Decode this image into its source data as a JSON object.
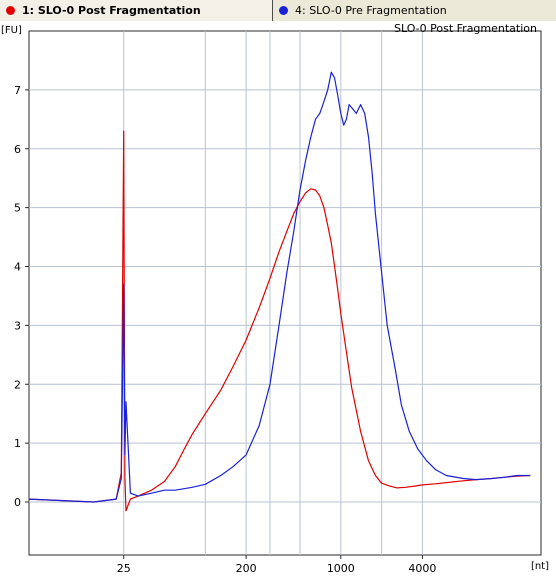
{
  "tabs": [
    {
      "label": "1: SLO-0 Post Fragmentation",
      "color": "#e00000",
      "active": true
    },
    {
      "label": "4: SLO-0 Pre Fragmentation",
      "color": "#1a22d8",
      "active": false
    }
  ],
  "chart_data": {
    "type": "line",
    "title": "SLO-0 Post Fragmentation",
    "ylabel": "[FU]",
    "xlabel": "[nt]",
    "x_scale": "log",
    "xlim": [
      5,
      30000
    ],
    "ylim": [
      -0.9,
      8.0
    ],
    "y_ticks": [
      0,
      1,
      2,
      3,
      4,
      5,
      6,
      7
    ],
    "x_tick_labels": [
      "25",
      "200",
      "1000",
      "4000"
    ],
    "x_ticks": [
      25,
      200,
      1000,
      4000
    ],
    "x_gridlines": [
      25,
      100,
      200,
      300,
      500,
      1000,
      2000,
      4000
    ],
    "grid": true,
    "series": [
      {
        "name": "1: SLO-0 Post Fragmentation",
        "color": "#e00000",
        "x": [
          5,
          15,
          22,
          24,
          25,
          25.5,
          26,
          28,
          32,
          40,
          50,
          60,
          70,
          80,
          100,
          130,
          160,
          200,
          250,
          300,
          350,
          400,
          450,
          500,
          550,
          600,
          650,
          700,
          750,
          800,
          850,
          900,
          950,
          1000,
          1100,
          1200,
          1400,
          1600,
          1800,
          2000,
          2300,
          2600,
          3000,
          3500,
          4000,
          5000,
          6000,
          8000,
          10000,
          13000,
          16000,
          20000,
          25000
        ],
        "y": [
          0.05,
          0.0,
          0.05,
          0.5,
          6.3,
          0.4,
          -0.15,
          0.05,
          0.1,
          0.2,
          0.35,
          0.6,
          0.9,
          1.15,
          1.5,
          1.9,
          2.3,
          2.75,
          3.3,
          3.8,
          4.25,
          4.6,
          4.9,
          5.1,
          5.25,
          5.32,
          5.3,
          5.2,
          5.0,
          4.7,
          4.4,
          4.0,
          3.6,
          3.2,
          2.55,
          1.95,
          1.2,
          0.7,
          0.45,
          0.32,
          0.27,
          0.24,
          0.25,
          0.27,
          0.29,
          0.31,
          0.33,
          0.36,
          0.38,
          0.4,
          0.42,
          0.44,
          0.45
        ]
      },
      {
        "name": "4: SLO-0 Pre Fragmentation",
        "color": "#1a22d8",
        "x": [
          5,
          15,
          22,
          24,
          25,
          25.5,
          26,
          28,
          32,
          40,
          50,
          60,
          80,
          100,
          130,
          160,
          200,
          250,
          300,
          350,
          400,
          450,
          500,
          550,
          600,
          650,
          700,
          750,
          800,
          850,
          900,
          950,
          1000,
          1050,
          1100,
          1150,
          1200,
          1300,
          1400,
          1500,
          1600,
          1700,
          1800,
          2000,
          2200,
          2500,
          2800,
          3200,
          3700,
          4300,
          5000,
          6000,
          8000,
          10000,
          13000,
          16000,
          20000,
          25000
        ],
        "y": [
          0.05,
          0.0,
          0.05,
          0.4,
          3.7,
          0.8,
          1.7,
          0.15,
          0.1,
          0.15,
          0.2,
          0.2,
          0.25,
          0.3,
          0.45,
          0.6,
          0.8,
          1.3,
          2.0,
          3.0,
          3.9,
          4.6,
          5.3,
          5.8,
          6.2,
          6.5,
          6.6,
          6.8,
          7.0,
          7.3,
          7.2,
          6.9,
          6.6,
          6.4,
          6.5,
          6.75,
          6.7,
          6.6,
          6.75,
          6.6,
          6.2,
          5.6,
          4.9,
          3.9,
          3.0,
          2.3,
          1.65,
          1.2,
          0.9,
          0.7,
          0.55,
          0.45,
          0.4,
          0.38,
          0.4,
          0.42,
          0.45,
          0.45
        ]
      }
    ]
  }
}
